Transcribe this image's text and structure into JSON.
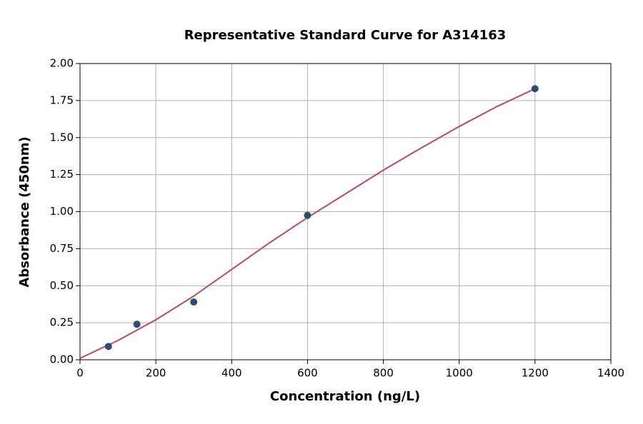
{
  "chart_data": {
    "type": "scatter",
    "title": "Representative Standard Curve for A314163",
    "x_label": "Concentration (ng/L)",
    "y_label": "Absorbance (450nm)",
    "xlim": [
      0,
      1400
    ],
    "ylim": [
      0,
      2
    ],
    "xticks": [
      0,
      200,
      400,
      600,
      800,
      1000,
      1200,
      1400
    ],
    "yticks": [
      {
        "value": 0,
        "label": "0.00"
      },
      {
        "value": 0.25,
        "label": "0.25"
      },
      {
        "value": 0.5,
        "label": "0.50"
      },
      {
        "value": 0.75,
        "label": "0.75"
      },
      {
        "value": 1,
        "label": "1.00"
      },
      {
        "value": 1.25,
        "label": "1.25"
      },
      {
        "value": 1.5,
        "label": "1.50"
      },
      {
        "value": 1.75,
        "label": "1.75"
      },
      {
        "value": 2,
        "label": "2.00"
      }
    ],
    "grid": true,
    "series": [
      {
        "type": "scatter",
        "color": "#2f4b6e",
        "x": [
          75,
          150,
          300,
          600,
          1200
        ],
        "values": [
          0.09,
          0.24,
          0.39,
          0.975,
          1.83
        ]
      },
      {
        "type": "line",
        "color": "#b5496e",
        "x": [
          0,
          100,
          200,
          300,
          400,
          500,
          600,
          700,
          800,
          900,
          1000,
          1100,
          1200
        ],
        "values": [
          0.01,
          0.13,
          0.27,
          0.43,
          0.61,
          0.79,
          0.96,
          1.12,
          1.28,
          1.43,
          1.575,
          1.71,
          1.83
        ]
      }
    ]
  }
}
